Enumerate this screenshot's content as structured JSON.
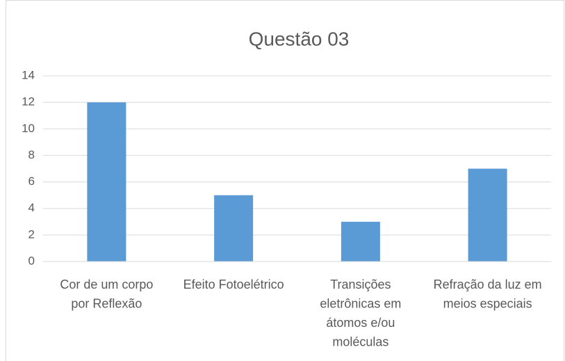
{
  "chart_data": {
    "type": "bar",
    "title": "Questão 03",
    "categories": [
      "Cor de um corpo por Reflexão",
      "Efeito Fotoelétrico",
      "Transições eletrônicas em átomos e/ou moléculas",
      "Refração da luz em meios especiais"
    ],
    "values": [
      12,
      5,
      3,
      7
    ],
    "color": "#5b9bd5",
    "ylim": [
      0,
      14
    ],
    "yticks": [
      0,
      2,
      4,
      6,
      8,
      10,
      12,
      14
    ],
    "grid": true
  }
}
